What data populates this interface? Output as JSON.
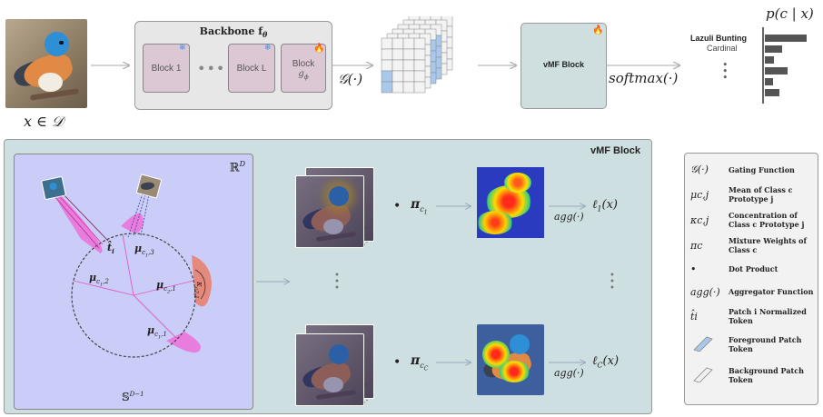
{
  "top": {
    "input_label": "x ∈ 𝒟",
    "backbone": {
      "title": "Backbone f",
      "title_sub": "θ",
      "blocks": [
        "Block 1",
        "Block L",
        "Block"
      ],
      "last_block_sub": "g",
      "last_block_subsub": "ϕ"
    },
    "gating_label": "𝒢(·)",
    "vmf_block_label": "vMF Block",
    "softmax_label": "softmax(·)",
    "output": {
      "title": "p(c | x)",
      "classes": [
        "Lazuli Bunting",
        "Cardinal"
      ],
      "bar_values": [
        1.0,
        0.42,
        0.22,
        0.55,
        0.2,
        0.35
      ]
    }
  },
  "vmf_panel": {
    "title": "vMF Block",
    "space_label": "ℝ",
    "space_sup": "D",
    "sphere_label": "𝕊",
    "sphere_sup": "D−1",
    "token_label": "t̂",
    "token_sub": "i",
    "mu_labels": [
      {
        "base": "μ",
        "sub": "c",
        "subsub": "1",
        "idx": ",3"
      },
      {
        "base": "μ",
        "sub": "c",
        "subsub": "1",
        "idx": ",2"
      },
      {
        "base": "μ",
        "sub": "c",
        "subsub": "2",
        "idx": ",1"
      },
      {
        "base": "μ",
        "sub": "c",
        "subsub": "1",
        "idx": ",1"
      }
    ],
    "kappa_label": "κ",
    "kappa_sub": "c2,1",
    "rows": [
      {
        "pi": "π",
        "pi_sub": "c",
        "pi_subsub": "1",
        "agg": "agg(·)",
        "loss": "ℓ",
        "loss_sub": "1",
        "loss_arg": "(x)"
      },
      {
        "pi": "π",
        "pi_sub": "c",
        "pi_subsub": "C",
        "agg": "agg(·)",
        "loss": "ℓ",
        "loss_sub": "C",
        "loss_arg": "(x)"
      }
    ]
  },
  "legend": [
    {
      "symbol": "𝒢(·)",
      "text": "Gating Function"
    },
    {
      "symbol": "μc,j",
      "text": "Mean of Class c Prototype j"
    },
    {
      "symbol": "κc,j",
      "text": "Concentration of Class c Prototype j"
    },
    {
      "symbol": "πc",
      "text": "Mixture Weights of Class c"
    },
    {
      "symbol": "•",
      "text": "Dot Product"
    },
    {
      "symbol": "agg(·)",
      "text": "Aggregator Function"
    },
    {
      "symbol": "t̂i",
      "text": "Patch i Normalized Token"
    },
    {
      "symbol": "",
      "text": "Foreground Patch Token"
    },
    {
      "symbol": "",
      "text": "Background Patch Token"
    }
  ],
  "colors": {
    "backbone_fill": "#e7e7e7",
    "block_fill": "#dcc8d4",
    "vmf_fill": "#cfdfe0",
    "panel_fill": "#cddfe0",
    "sphere_panel_fill": "#c9cdf7",
    "pink": "#ee6fd9",
    "salmon": "#e8826e",
    "foreground_token": "#a9c8ea",
    "bar": "#555555"
  },
  "icons": [
    "fire-icon",
    "snowflake-icon",
    "dot-icon",
    "ellipsis-icon"
  ]
}
